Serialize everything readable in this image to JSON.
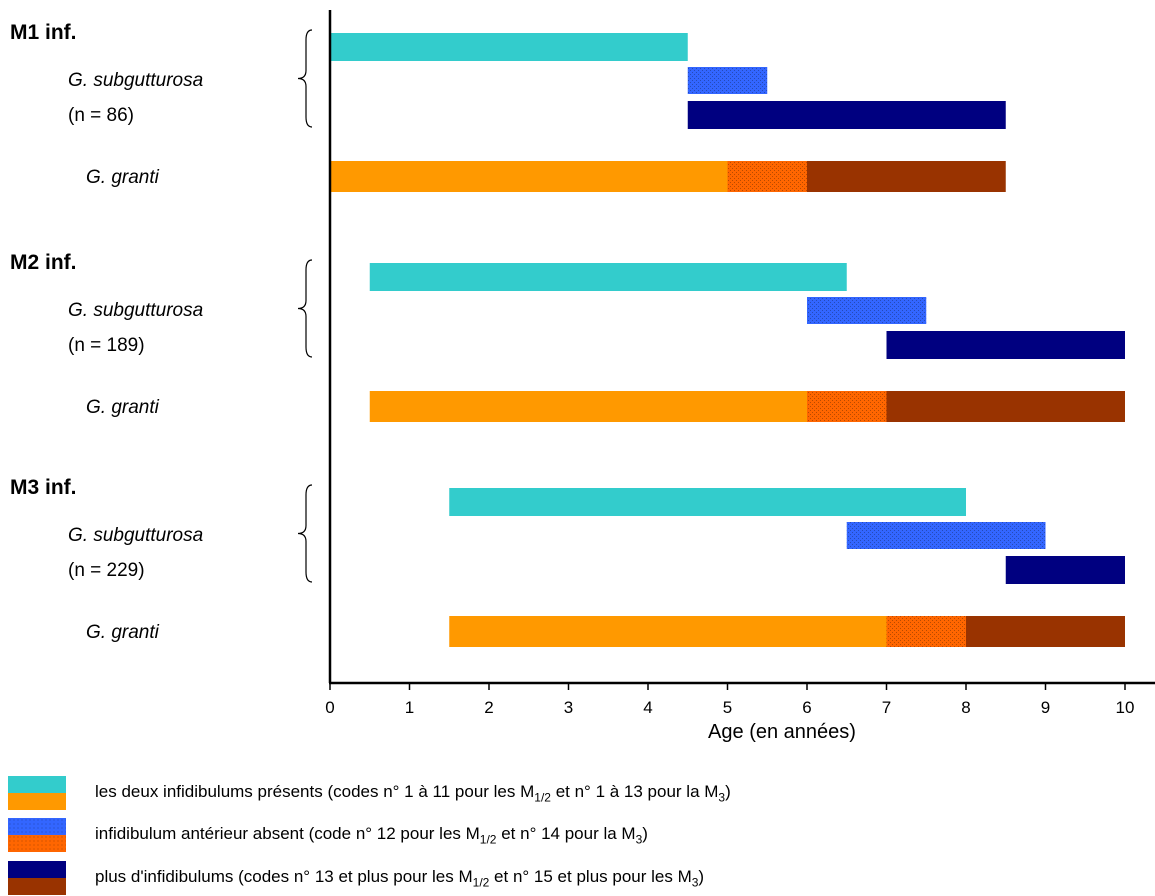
{
  "colors": {
    "subgutturosa": [
      "#33cccc",
      "#3366ff",
      "#000080"
    ],
    "granti": [
      "#ff9900",
      "#ff6600",
      "#993300"
    ],
    "speckle": "#000000"
  },
  "chart_data": {
    "type": "bar",
    "orientation": "horizontal-range",
    "xlabel": "Age (en années)",
    "xlim": [
      0,
      10
    ],
    "xticks": [
      0,
      1,
      2,
      3,
      4,
      5,
      6,
      7,
      8,
      9,
      10
    ],
    "groups": [
      {
        "title": "M1 inf.",
        "species": [
          {
            "name": "G. subgutturosa",
            "count_label": "(n = 86)",
            "stages": [
              [
                0,
                4.5
              ],
              [
                4.5,
                5.5
              ],
              [
                4.5,
                8.5
              ]
            ]
          },
          {
            "name": "G. granti",
            "stages": [
              [
                0,
                5
              ],
              [
                5,
                6
              ],
              [
                6,
                8.5
              ]
            ]
          }
        ]
      },
      {
        "title": "M2 inf.",
        "species": [
          {
            "name": "G. subgutturosa",
            "count_label": "(n = 189)",
            "stages": [
              [
                0.5,
                6.5
              ],
              [
                6,
                7.5
              ],
              [
                7,
                10
              ]
            ]
          },
          {
            "name": "G. granti",
            "stages": [
              [
                0.5,
                6
              ],
              [
                6,
                7
              ],
              [
                7,
                10
              ]
            ]
          }
        ]
      },
      {
        "title": "M3 inf.",
        "species": [
          {
            "name": "G. subgutturosa",
            "count_label": "(n = 229)",
            "stages": [
              [
                1.5,
                8
              ],
              [
                6.5,
                9
              ],
              [
                8.5,
                10
              ]
            ]
          },
          {
            "name": "G. granti",
            "stages": [
              [
                1.5,
                7
              ],
              [
                7,
                8
              ],
              [
                8,
                10
              ]
            ]
          }
        ]
      }
    ]
  },
  "legend": [
    {
      "parts": [
        {
          "t": "les deux infidibulums présents (codes n° 1 à 11 pour les M"
        },
        {
          "sub": "1/2"
        },
        {
          "t": " et n° 1 à 13 pour la M"
        },
        {
          "sub": "3"
        },
        {
          "t": ")"
        }
      ]
    },
    {
      "parts": [
        {
          "t": "infidibulum antérieur absent (code n° 12 pour les M"
        },
        {
          "sub": "1/2"
        },
        {
          "t": " et n° 14 pour la M"
        },
        {
          "sub": "3"
        },
        {
          "t": ")"
        }
      ]
    },
    {
      "parts": [
        {
          "t": "plus d'infidibulums (codes n° 13 et plus pour les M"
        },
        {
          "sub": "1/2"
        },
        {
          "t": " et n° 15 et plus pour les M"
        },
        {
          "sub": "3"
        },
        {
          "t": ")"
        }
      ]
    }
  ]
}
